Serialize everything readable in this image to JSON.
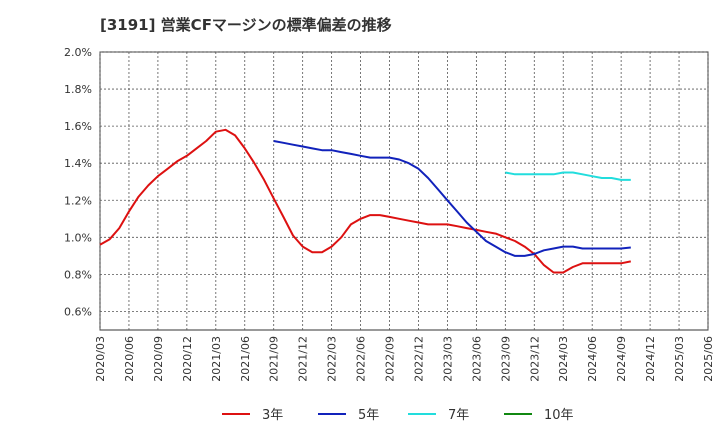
{
  "chart_data": {
    "type": "line",
    "title": "[3191]  営業CFマージンの標準偏差の推移",
    "y_tick_labels": [
      "0.6%",
      "0.8%",
      "1.0%",
      "1.2%",
      "1.4%",
      "1.6%",
      "1.8%",
      "2.0%"
    ],
    "y_ticks": [
      0.6,
      0.8,
      1.0,
      1.2,
      1.4,
      1.6,
      1.8,
      2.0
    ],
    "ylim": [
      0.5,
      2.0
    ],
    "x_ticks": [
      "2020/03",
      "2020/06",
      "2020/09",
      "2020/12",
      "2021/03",
      "2021/06",
      "2021/09",
      "2021/12",
      "2022/03",
      "2022/06",
      "2022/09",
      "2022/12",
      "2023/03",
      "2023/06",
      "2023/09",
      "2023/12",
      "2024/03",
      "2024/06",
      "2024/09",
      "2024/12",
      "2025/03",
      "2025/06"
    ],
    "grid": true,
    "legend_position": "bottom",
    "series": [
      {
        "name": "3年",
        "color": "#dd1111",
        "points": [
          [
            "2020/03",
            0.96
          ],
          [
            "2020/04",
            0.99
          ],
          [
            "2020/05",
            1.05
          ],
          [
            "2020/06",
            1.14
          ],
          [
            "2020/07",
            1.22
          ],
          [
            "2020/08",
            1.28
          ],
          [
            "2020/09",
            1.33
          ],
          [
            "2020/10",
            1.37
          ],
          [
            "2020/11",
            1.41
          ],
          [
            "2020/12",
            1.44
          ],
          [
            "2021/01",
            1.48
          ],
          [
            "2021/02",
            1.52
          ],
          [
            "2021/03",
            1.57
          ],
          [
            "2021/04",
            1.58
          ],
          [
            "2021/05",
            1.55
          ],
          [
            "2021/06",
            1.48
          ],
          [
            "2021/07",
            1.4
          ],
          [
            "2021/08",
            1.31
          ],
          [
            "2021/09",
            1.21
          ],
          [
            "2021/10",
            1.11
          ],
          [
            "2021/11",
            1.01
          ],
          [
            "2021/12",
            0.95
          ],
          [
            "2022/01",
            0.92
          ],
          [
            "2022/02",
            0.92
          ],
          [
            "2022/03",
            0.95
          ],
          [
            "2022/04",
            1.0
          ],
          [
            "2022/05",
            1.07
          ],
          [
            "2022/06",
            1.1
          ],
          [
            "2022/07",
            1.12
          ],
          [
            "2022/08",
            1.12
          ],
          [
            "2022/09",
            1.11
          ],
          [
            "2022/10",
            1.1
          ],
          [
            "2022/11",
            1.09
          ],
          [
            "2022/12",
            1.08
          ],
          [
            "2023/01",
            1.07
          ],
          [
            "2023/02",
            1.07
          ],
          [
            "2023/03",
            1.07
          ],
          [
            "2023/04",
            1.06
          ],
          [
            "2023/05",
            1.05
          ],
          [
            "2023/06",
            1.04
          ],
          [
            "2023/07",
            1.03
          ],
          [
            "2023/08",
            1.02
          ],
          [
            "2023/09",
            1.0
          ],
          [
            "2023/10",
            0.98
          ],
          [
            "2023/11",
            0.95
          ],
          [
            "2023/12",
            0.91
          ],
          [
            "2024/01",
            0.85
          ],
          [
            "2024/02",
            0.81
          ],
          [
            "2024/03",
            0.81
          ],
          [
            "2024/04",
            0.84
          ],
          [
            "2024/05",
            0.86
          ],
          [
            "2024/06",
            0.86
          ],
          [
            "2024/07",
            0.86
          ],
          [
            "2024/08",
            0.86
          ],
          [
            "2024/09",
            0.86
          ],
          [
            "2024/10",
            0.87
          ]
        ]
      },
      {
        "name": "5年",
        "color": "#1122bb",
        "points": [
          [
            "2021/09",
            1.52
          ],
          [
            "2021/10",
            1.51
          ],
          [
            "2021/11",
            1.5
          ],
          [
            "2021/12",
            1.49
          ],
          [
            "2022/01",
            1.48
          ],
          [
            "2022/02",
            1.47
          ],
          [
            "2022/03",
            1.47
          ],
          [
            "2022/04",
            1.46
          ],
          [
            "2022/05",
            1.45
          ],
          [
            "2022/06",
            1.44
          ],
          [
            "2022/07",
            1.43
          ],
          [
            "2022/08",
            1.43
          ],
          [
            "2022/09",
            1.43
          ],
          [
            "2022/10",
            1.42
          ],
          [
            "2022/11",
            1.4
          ],
          [
            "2022/12",
            1.37
          ],
          [
            "2023/01",
            1.32
          ],
          [
            "2023/02",
            1.26
          ],
          [
            "2023/03",
            1.2
          ],
          [
            "2023/04",
            1.14
          ],
          [
            "2023/05",
            1.08
          ],
          [
            "2023/06",
            1.03
          ],
          [
            "2023/07",
            0.98
          ],
          [
            "2023/08",
            0.95
          ],
          [
            "2023/09",
            0.92
          ],
          [
            "2023/10",
            0.9
          ],
          [
            "2023/11",
            0.9
          ],
          [
            "2023/12",
            0.91
          ],
          [
            "2024/01",
            0.93
          ],
          [
            "2024/02",
            0.94
          ],
          [
            "2024/03",
            0.95
          ],
          [
            "2024/04",
            0.95
          ],
          [
            "2024/05",
            0.94
          ],
          [
            "2024/06",
            0.94
          ],
          [
            "2024/07",
            0.94
          ],
          [
            "2024/08",
            0.94
          ],
          [
            "2024/09",
            0.94
          ],
          [
            "2024/10",
            0.945
          ]
        ]
      },
      {
        "name": "7年",
        "color": "#22dddd",
        "points": [
          [
            "2023/09",
            1.35
          ],
          [
            "2023/10",
            1.34
          ],
          [
            "2023/11",
            1.34
          ],
          [
            "2023/12",
            1.34
          ],
          [
            "2024/01",
            1.34
          ],
          [
            "2024/02",
            1.34
          ],
          [
            "2024/03",
            1.35
          ],
          [
            "2024/04",
            1.35
          ],
          [
            "2024/05",
            1.34
          ],
          [
            "2024/06",
            1.33
          ],
          [
            "2024/07",
            1.32
          ],
          [
            "2024/08",
            1.32
          ],
          [
            "2024/09",
            1.31
          ],
          [
            "2024/10",
            1.31
          ]
        ]
      },
      {
        "name": "10年",
        "color": "#118811",
        "points": []
      }
    ]
  }
}
